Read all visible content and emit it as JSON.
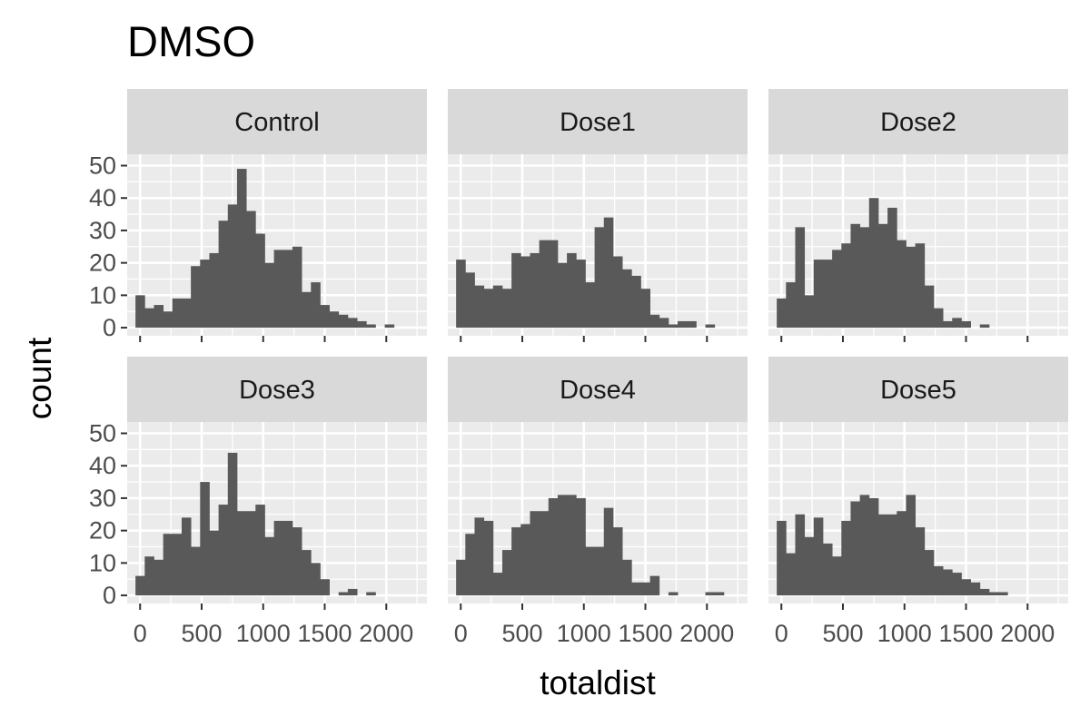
{
  "chart_data": {
    "type": "bar",
    "title": "DMSO",
    "xlabel": "totaldist",
    "ylabel": "count",
    "xlim": [
      -105,
      2330
    ],
    "ylim": [
      -2.5,
      53.5
    ],
    "x_ticks": [
      0,
      500,
      1000,
      1500,
      2000
    ],
    "x_tick_labels": [
      "0",
      "500",
      "1000",
      "1500",
      "2000"
    ],
    "y_ticks": [
      0,
      10,
      20,
      30,
      40,
      50
    ],
    "y_tick_labels": [
      "0",
      "10",
      "20",
      "30",
      "40",
      "50"
    ],
    "grid": true,
    "bin_width": 75,
    "bin_start": -37.5,
    "bar_color": "#595959",
    "panel_background": "#ebebeb",
    "strip_background": "#d9d9d9",
    "facets": [
      {
        "name": "Control",
        "values": [
          10,
          6,
          7,
          5,
          9,
          9,
          19,
          21,
          23,
          33,
          38,
          49,
          36,
          29,
          20,
          24,
          24,
          25,
          11,
          14,
          7,
          5,
          4,
          3,
          2,
          1,
          0,
          1,
          0,
          0
        ]
      },
      {
        "name": "Dose1",
        "values": [
          21,
          17,
          13,
          12,
          13,
          12,
          23,
          22,
          23,
          27,
          27,
          20,
          23,
          21,
          14,
          31,
          34,
          22,
          18,
          16,
          12,
          4,
          3,
          1,
          2,
          2,
          0,
          1,
          0,
          0
        ]
      },
      {
        "name": "Dose2",
        "values": [
          9,
          14,
          31,
          10,
          21,
          21,
          24,
          26,
          32,
          31,
          40,
          32,
          37,
          27,
          25,
          26,
          13,
          6,
          2,
          3,
          2,
          0,
          1,
          0,
          0,
          0,
          0,
          0,
          0,
          0
        ]
      },
      {
        "name": "Dose3",
        "values": [
          6,
          12,
          11,
          19,
          19,
          24,
          15,
          35,
          20,
          28,
          44,
          26,
          26,
          28,
          18,
          23,
          23,
          21,
          14,
          10,
          5,
          0,
          1,
          2,
          0,
          1,
          0,
          0,
          0,
          0
        ]
      },
      {
        "name": "Dose4",
        "values": [
          11,
          19,
          24,
          23,
          7,
          14,
          21,
          22,
          26,
          26,
          30,
          31,
          31,
          30,
          15,
          15,
          27,
          21,
          11,
          4,
          4,
          6,
          0,
          1,
          0,
          0,
          0,
          1,
          1,
          0
        ]
      },
      {
        "name": "Dose5",
        "values": [
          23,
          13,
          25,
          18,
          24,
          16,
          12,
          23,
          29,
          31,
          30,
          25,
          25,
          26,
          31,
          21,
          14,
          9,
          8,
          7,
          5,
          4,
          2,
          1,
          1,
          0,
          0,
          0,
          0,
          0
        ]
      }
    ]
  }
}
